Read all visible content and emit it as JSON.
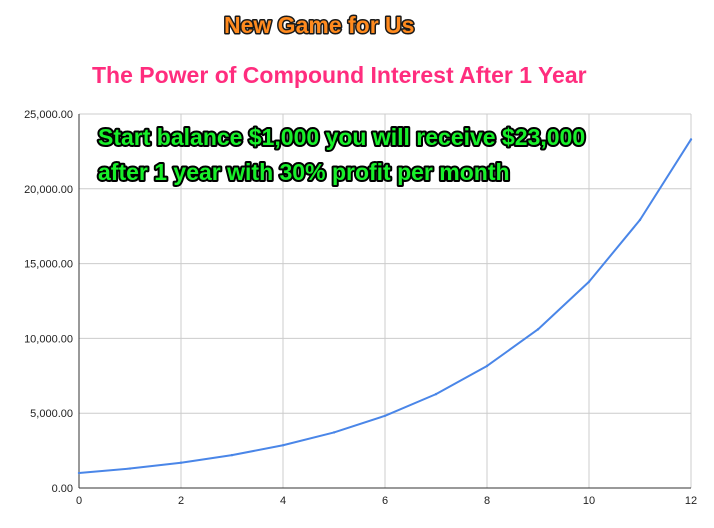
{
  "game_title": "New Game for Us",
  "colors": {
    "game_title": "#ff8a1e",
    "title": "#ff2d7e",
    "annotation": "#18f02a",
    "line": "#4a86e8",
    "grid": "#cccccc"
  },
  "chart_data": {
    "type": "line",
    "title": "The Power of Compound Interest After 1 Year",
    "xlabel": "",
    "ylabel": "",
    "annotation": [
      "Start balance $1,000 you will receive $23,000",
      "after 1 year with 30% profit per month"
    ],
    "x": [
      0,
      1,
      2,
      3,
      4,
      5,
      6,
      7,
      8,
      9,
      10,
      11,
      12
    ],
    "series": [
      {
        "values": [
          1000,
          1300,
          1690,
          2197,
          2856,
          3713,
          4827,
          6275,
          8157,
          10604,
          13786,
          17922,
          23298
        ]
      }
    ],
    "xlim": [
      0,
      12
    ],
    "ylim": [
      0,
      25000
    ],
    "x_ticks": [
      0,
      2,
      4,
      6,
      8,
      10,
      12
    ],
    "y_ticks": [
      0,
      5000,
      10000,
      15000,
      20000,
      25000
    ],
    "y_tick_labels": [
      "0.00",
      "5,000.00",
      "10,000.00",
      "15,000.00",
      "20,000.00",
      "25,000.00"
    ],
    "grid": true,
    "legend": "none"
  }
}
